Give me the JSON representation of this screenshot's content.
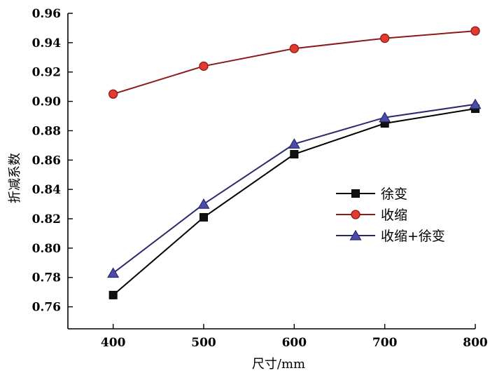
{
  "chart_data": {
    "type": "line",
    "title": "",
    "xlabel": "尺寸/mm",
    "ylabel": "折减系数",
    "x": [
      400,
      500,
      600,
      700,
      800
    ],
    "xlim": [
      350,
      800
    ],
    "ylim": [
      0.745,
      0.96
    ],
    "xticks": [
      "400",
      "500",
      "600",
      "700",
      "800"
    ],
    "yticks": [
      "0.96",
      "0.94",
      "0.92",
      "0.90",
      "0.88",
      "0.86",
      "0.84",
      "0.82",
      "0.80",
      "0.78",
      "0.76"
    ],
    "grid": false,
    "legend_position": "center-right",
    "series": [
      {
        "name": "徐变",
        "values": [
          0.768,
          0.821,
          0.864,
          0.885,
          0.895
        ],
        "marker": "square",
        "color": "#000000",
        "fill": "#111111"
      },
      {
        "name": "收缩",
        "values": [
          0.905,
          0.924,
          0.936,
          0.943,
          0.948
        ],
        "marker": "circle",
        "color": "#8b1a1a",
        "fill": "#e23b2e"
      },
      {
        "name": "收缩+徐变",
        "values": [
          0.783,
          0.83,
          0.871,
          0.889,
          0.898
        ],
        "marker": "triangle",
        "color": "#2a2a6e",
        "fill": "#4b4ba8"
      }
    ]
  }
}
